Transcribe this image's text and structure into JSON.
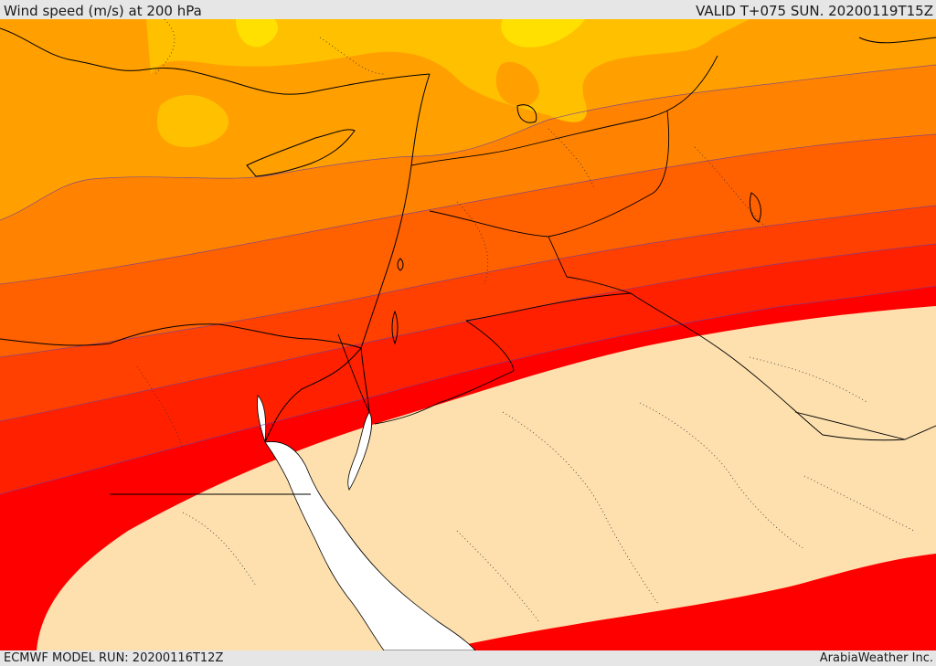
{
  "header": {
    "title": "Wind speed (m/s) at 200 hPa",
    "valid": "VALID T+075 SUN. 20200119T15Z"
  },
  "footer": {
    "model_run": "ECMWF MODEL RUN: 20200116T12Z",
    "credit": "ArabiaWeather Inc."
  },
  "map": {
    "field": "wind speed",
    "level": "200 hPa",
    "fill_colors": [
      "#ffe000",
      "#ffc000",
      "#ffa000",
      "#ff8200",
      "#ff6000",
      "#ff4000",
      "#ff2000",
      "#ff0000"
    ],
    "land_color": "#fde0ae",
    "sea_color": "#ffffff",
    "coastline_color": "#000000",
    "contour_color": "#6a3fa0"
  }
}
